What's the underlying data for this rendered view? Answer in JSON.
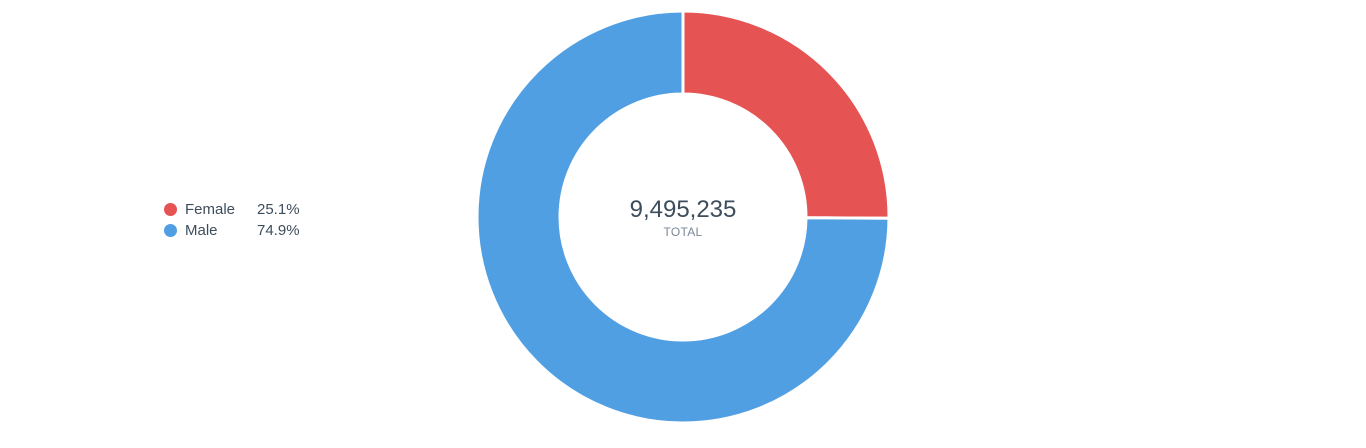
{
  "chart_data": {
    "type": "pie",
    "style": "donut",
    "series": [
      {
        "name": "Female",
        "value": 25.1,
        "label": "25.1%",
        "color": "#e55353"
      },
      {
        "name": "Male",
        "value": 74.9,
        "label": "74.9%",
        "color": "#519fe3"
      }
    ],
    "center": {
      "value": "9,495,235",
      "label": "TOTAL"
    },
    "legend_placement": "left"
  }
}
